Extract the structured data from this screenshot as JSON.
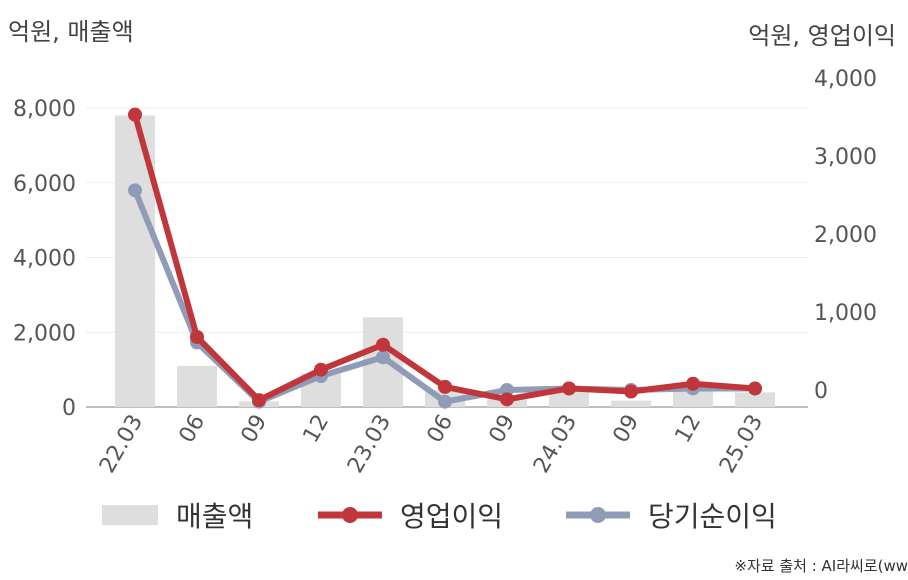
{
  "titles": {
    "left_axis": "억원, 매출액",
    "right_axis": "억원, 영업이익"
  },
  "source": "※자료 출처 : AI라씨로(ww",
  "chart_data": {
    "type": "bar+line",
    "categories": [
      "22.03",
      "06",
      "09",
      "12",
      "23.03",
      "06",
      "09",
      "24.03",
      "09",
      "12",
      "25.03"
    ],
    "left_axis": {
      "ylim": [
        0,
        8000
      ],
      "ticks": [
        "0",
        "2,000",
        "4,000",
        "6,000",
        "8,000"
      ]
    },
    "right_axis": {
      "ylim": [
        -200,
        4000
      ],
      "ticks": [
        "0",
        "1,000",
        "2,000",
        "3,000",
        "4,000"
      ]
    },
    "series": [
      {
        "name": "매출액",
        "kind": "bar",
        "axis": "left",
        "color": "#dedede",
        "values": [
          7800,
          1100,
          150,
          900,
          2400,
          450,
          200,
          430,
          170,
          420,
          390
        ]
      },
      {
        "name": "영업이익",
        "kind": "line",
        "axis": "right",
        "color": "#c0363a",
        "values": [
          3530,
          680,
          -130,
          260,
          580,
          40,
          -120,
          20,
          -20,
          80,
          20
        ]
      },
      {
        "name": "당기순이익",
        "kind": "line",
        "axis": "right",
        "color": "#8f9bb7",
        "values": [
          2560,
          610,
          -150,
          180,
          420,
          -150,
          0,
          20,
          0,
          20,
          20
        ]
      }
    ],
    "grid": true,
    "legend_position": "bottom"
  }
}
